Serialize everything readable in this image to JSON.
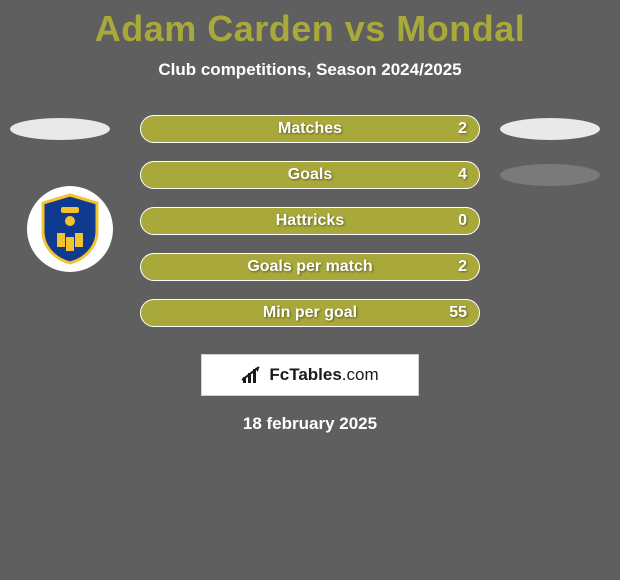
{
  "title": "Adam Carden vs Mondal",
  "subtitle": "Club competitions, Season 2024/2025",
  "date": "18 february 2025",
  "brand": {
    "name": "FcTables",
    "suffix": ".com"
  },
  "colors": {
    "background": "#5f5f5f",
    "accent": "#a9a93b",
    "bar_border": "#ffffff",
    "text_light": "#ffffff",
    "ellipse_left": "#e9e9e9",
    "ellipse_right_1": "#e9e9e9",
    "ellipse_right_2": "#7a7a7a",
    "crest_primary": "#103a8f",
    "crest_accent": "#f4c430"
  },
  "stats": [
    {
      "label": "Matches",
      "value": "2"
    },
    {
      "label": "Goals",
      "value": "4"
    },
    {
      "label": "Hattricks",
      "value": "0"
    },
    {
      "label": "Goals per match",
      "value": "2"
    },
    {
      "label": "Min per goal",
      "value": "55"
    }
  ],
  "side_ellipses": {
    "left": [
      {
        "row": 0,
        "color_key": "ellipse_left"
      }
    ],
    "right": [
      {
        "row": 0,
        "color_key": "ellipse_right_1"
      },
      {
        "row": 1,
        "color_key": "ellipse_right_2"
      }
    ]
  }
}
